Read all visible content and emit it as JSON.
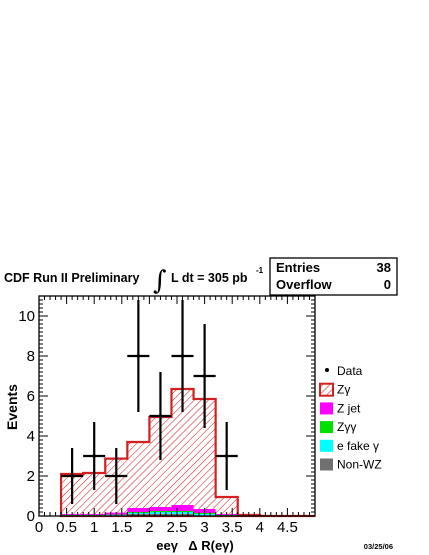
{
  "header": {
    "prefix": "CDF Run II Preliminary",
    "integral": "∫",
    "lumi": "L dt = 305 pb",
    "lumi_exp": "-1"
  },
  "stats": {
    "entries_label": "Entries",
    "entries_value": "38",
    "overflow_label": "Overflow",
    "overflow_value": "0"
  },
  "footer": {
    "date": "03/25/06"
  },
  "chart_data": {
    "type": "bar",
    "ylabel": "Events",
    "xlabel": "eeγ   Δ R(eγ)",
    "xlim": [
      0,
      5
    ],
    "ylim": [
      0,
      11
    ],
    "x_ticks": [
      "0",
      "0.5",
      "1",
      "1.5",
      "2",
      "2.5",
      "3",
      "3.5",
      "4",
      "4.5"
    ],
    "y_ticks": [
      "0",
      "2",
      "4",
      "6",
      "8",
      "10"
    ],
    "bin_edges": [
      0.4,
      0.8,
      1.2,
      1.6,
      2.0,
      2.4,
      2.8,
      3.2,
      3.6,
      4.0,
      4.4,
      4.8,
      5.0
    ],
    "series": [
      {
        "name": "Zγ",
        "color": "#d42020",
        "style": "hatched",
        "values": [
          2.0,
          2.05,
          2.7,
          3.3,
          4.5,
          5.8,
          5.5,
          0.85,
          0.05,
          0,
          0,
          0
        ]
      },
      {
        "name": "Z jet",
        "color": "#ff00ff",
        "values": [
          0.05,
          0.05,
          0.1,
          0.2,
          0.2,
          0.3,
          0.2,
          0.05,
          0,
          0,
          0,
          0
        ]
      },
      {
        "name": "Zγγ",
        "color": "#00e000",
        "values": [
          0.02,
          0.02,
          0.02,
          0.05,
          0.05,
          0.05,
          0.05,
          0.02,
          0,
          0,
          0,
          0
        ]
      },
      {
        "name": "e fake γ",
        "color": "#00ffff",
        "values": [
          0.03,
          0.03,
          0.05,
          0.05,
          0.1,
          0.1,
          0.1,
          0.03,
          0,
          0,
          0,
          0
        ]
      },
      {
        "name": "Non-WZ",
        "color": "#707070",
        "values": [
          0,
          0,
          0,
          0.1,
          0.1,
          0.1,
          0,
          0,
          0,
          0,
          0,
          0
        ]
      }
    ],
    "data_points": {
      "name": "Data",
      "x": [
        0.6,
        1.0,
        1.4,
        1.8,
        2.2,
        2.6,
        3.0,
        3.4
      ],
      "y": [
        2,
        3,
        2,
        8,
        5,
        8,
        7,
        3
      ],
      "yerr": [
        1.4,
        1.7,
        1.4,
        2.8,
        2.2,
        2.8,
        2.6,
        1.7
      ]
    },
    "legend_placement": "right",
    "grid": false
  }
}
